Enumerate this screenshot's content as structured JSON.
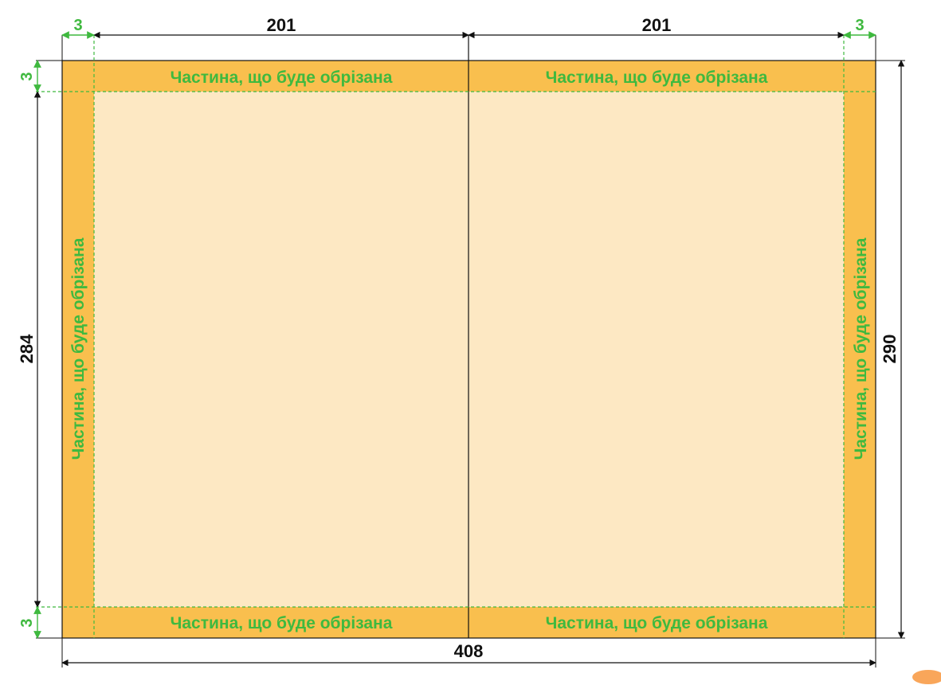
{
  "bleed_label": "Частина, що буде обрізана",
  "dimensions": {
    "bleed_left": "3",
    "bleed_right": "3",
    "bleed_top": "3",
    "bleed_bottom": "3",
    "page_width_left": "201",
    "page_width_right": "201",
    "trim_height": "284",
    "total_height": "290",
    "total_width": "408"
  },
  "colors": {
    "bleed": "#f9bf4e",
    "trim_area": "#fde8c3",
    "guide": "#3fb93f",
    "outline": "#111111",
    "corner_blob": "#f9a65a"
  }
}
